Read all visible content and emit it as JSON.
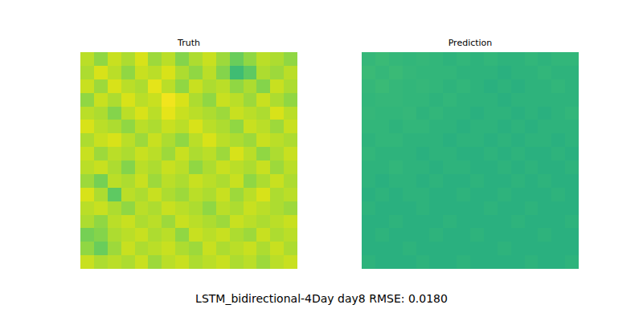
{
  "caption": "LSTM_bidirectional-4Day day8 RMSE: 0.0180",
  "chart_data": [
    {
      "type": "heatmap",
      "title": "Truth",
      "tick_labels": false,
      "color": "viridis",
      "color_range": [
        0,
        0.96
      ],
      "cells": [
        [
          0.86,
          0.8,
          0.88,
          0.84,
          0.9,
          0.82,
          0.86,
          0.78,
          0.84,
          0.88,
          0.82,
          0.74,
          0.8,
          0.86,
          0.84,
          0.8
        ],
        [
          0.84,
          0.9,
          0.86,
          0.8,
          0.88,
          0.86,
          0.9,
          0.84,
          0.8,
          0.86,
          0.78,
          0.66,
          0.72,
          0.84,
          0.82,
          0.86
        ],
        [
          0.88,
          0.82,
          0.9,
          0.86,
          0.84,
          0.92,
          0.86,
          0.8,
          0.88,
          0.84,
          0.86,
          0.8,
          0.84,
          0.78,
          0.88,
          0.84
        ],
        [
          0.8,
          0.88,
          0.84,
          0.9,
          0.86,
          0.88,
          0.94,
          0.9,
          0.84,
          0.8,
          0.88,
          0.86,
          0.82,
          0.88,
          0.84,
          0.8
        ],
        [
          0.86,
          0.84,
          0.78,
          0.86,
          0.9,
          0.86,
          0.92,
          0.88,
          0.86,
          0.84,
          0.82,
          0.88,
          0.86,
          0.84,
          0.9,
          0.86
        ],
        [
          0.9,
          0.86,
          0.84,
          0.8,
          0.86,
          0.84,
          0.88,
          0.86,
          0.9,
          0.86,
          0.84,
          0.8,
          0.88,
          0.86,
          0.82,
          0.88
        ],
        [
          0.84,
          0.88,
          0.9,
          0.86,
          0.82,
          0.88,
          0.84,
          0.8,
          0.86,
          0.9,
          0.86,
          0.84,
          0.82,
          0.88,
          0.86,
          0.84
        ],
        [
          0.88,
          0.82,
          0.86,
          0.84,
          0.88,
          0.86,
          0.82,
          0.88,
          0.84,
          0.86,
          0.82,
          0.9,
          0.86,
          0.8,
          0.84,
          0.88
        ],
        [
          0.86,
          0.88,
          0.84,
          0.78,
          0.86,
          0.84,
          0.88,
          0.86,
          0.8,
          0.84,
          0.88,
          0.86,
          0.84,
          0.88,
          0.82,
          0.86
        ],
        [
          0.82,
          0.76,
          0.86,
          0.84,
          0.88,
          0.82,
          0.86,
          0.84,
          0.88,
          0.86,
          0.84,
          0.88,
          0.8,
          0.84,
          0.88,
          0.84
        ],
        [
          0.9,
          0.84,
          0.72,
          0.86,
          0.84,
          0.88,
          0.84,
          0.82,
          0.86,
          0.84,
          0.88,
          0.82,
          0.86,
          0.9,
          0.84,
          0.86
        ],
        [
          0.86,
          0.88,
          0.84,
          0.8,
          0.86,
          0.84,
          0.88,
          0.86,
          0.84,
          0.8,
          0.86,
          0.84,
          0.88,
          0.86,
          0.84,
          0.82
        ],
        [
          0.84,
          0.8,
          0.86,
          0.88,
          0.84,
          0.86,
          0.82,
          0.88,
          0.86,
          0.84,
          0.82,
          0.88,
          0.86,
          0.84,
          0.86,
          0.88
        ],
        [
          0.76,
          0.78,
          0.84,
          0.86,
          0.88,
          0.84,
          0.86,
          0.8,
          0.88,
          0.86,
          0.88,
          0.84,
          0.82,
          0.88,
          0.84,
          0.86
        ],
        [
          0.8,
          0.74,
          0.82,
          0.88,
          0.84,
          0.86,
          0.88,
          0.84,
          0.82,
          0.88,
          0.84,
          0.86,
          0.88,
          0.84,
          0.88,
          0.84
        ],
        [
          0.88,
          0.84,
          0.86,
          0.84,
          0.88,
          0.82,
          0.86,
          0.88,
          0.84,
          0.86,
          0.88,
          0.84,
          0.86,
          0.82,
          0.86,
          0.88
        ]
      ]
    },
    {
      "type": "heatmap",
      "title": "Prediction",
      "tick_labels": false,
      "color": "viridis",
      "color_range": [
        0,
        0.96
      ],
      "cells": [
        [
          0.64,
          0.65,
          0.64,
          0.63,
          0.64,
          0.63,
          0.62,
          0.63,
          0.62,
          0.63,
          0.62,
          0.62,
          0.63,
          0.62,
          0.63,
          0.63
        ],
        [
          0.65,
          0.64,
          0.65,
          0.64,
          0.63,
          0.63,
          0.63,
          0.62,
          0.62,
          0.62,
          0.61,
          0.62,
          0.62,
          0.63,
          0.62,
          0.62
        ],
        [
          0.64,
          0.65,
          0.64,
          0.63,
          0.64,
          0.63,
          0.62,
          0.63,
          0.62,
          0.61,
          0.62,
          0.61,
          0.62,
          0.62,
          0.63,
          0.62
        ],
        [
          0.63,
          0.64,
          0.64,
          0.63,
          0.63,
          0.62,
          0.63,
          0.62,
          0.62,
          0.62,
          0.61,
          0.62,
          0.62,
          0.62,
          0.62,
          0.62
        ],
        [
          0.64,
          0.63,
          0.63,
          0.64,
          0.62,
          0.63,
          0.62,
          0.62,
          0.61,
          0.62,
          0.62,
          0.61,
          0.62,
          0.61,
          0.62,
          0.63
        ],
        [
          0.63,
          0.63,
          0.62,
          0.63,
          0.63,
          0.62,
          0.62,
          0.61,
          0.62,
          0.62,
          0.61,
          0.62,
          0.61,
          0.62,
          0.62,
          0.62
        ],
        [
          0.62,
          0.63,
          0.63,
          0.62,
          0.62,
          0.62,
          0.61,
          0.62,
          0.62,
          0.61,
          0.62,
          0.61,
          0.62,
          0.62,
          0.61,
          0.62
        ],
        [
          0.63,
          0.62,
          0.62,
          0.62,
          0.61,
          0.62,
          0.62,
          0.61,
          0.61,
          0.62,
          0.61,
          0.62,
          0.61,
          0.61,
          0.62,
          0.61
        ],
        [
          0.62,
          0.62,
          0.63,
          0.62,
          0.62,
          0.61,
          0.62,
          0.62,
          0.61,
          0.61,
          0.62,
          0.61,
          0.62,
          0.61,
          0.61,
          0.62
        ],
        [
          0.62,
          0.61,
          0.62,
          0.62,
          0.61,
          0.62,
          0.61,
          0.61,
          0.62,
          0.61,
          0.61,
          0.62,
          0.61,
          0.62,
          0.61,
          0.61
        ],
        [
          0.61,
          0.62,
          0.61,
          0.62,
          0.62,
          0.61,
          0.61,
          0.62,
          0.61,
          0.61,
          0.62,
          0.61,
          0.61,
          0.61,
          0.62,
          0.61
        ],
        [
          0.62,
          0.61,
          0.61,
          0.61,
          0.62,
          0.61,
          0.61,
          0.61,
          0.61,
          0.62,
          0.61,
          0.61,
          0.62,
          0.61,
          0.61,
          0.61
        ],
        [
          0.61,
          0.61,
          0.62,
          0.61,
          0.61,
          0.61,
          0.62,
          0.61,
          0.61,
          0.61,
          0.61,
          0.62,
          0.61,
          0.61,
          0.61,
          0.62
        ],
        [
          0.61,
          0.62,
          0.61,
          0.61,
          0.61,
          0.62,
          0.61,
          0.61,
          0.62,
          0.61,
          0.61,
          0.61,
          0.61,
          0.62,
          0.61,
          0.61
        ],
        [
          0.61,
          0.61,
          0.61,
          0.62,
          0.61,
          0.61,
          0.61,
          0.61,
          0.61,
          0.61,
          0.62,
          0.61,
          0.61,
          0.61,
          0.61,
          0.61
        ],
        [
          0.62,
          0.61,
          0.61,
          0.61,
          0.62,
          0.61,
          0.61,
          0.62,
          0.61,
          0.61,
          0.61,
          0.61,
          0.62,
          0.61,
          0.61,
          0.62
        ]
      ]
    }
  ]
}
